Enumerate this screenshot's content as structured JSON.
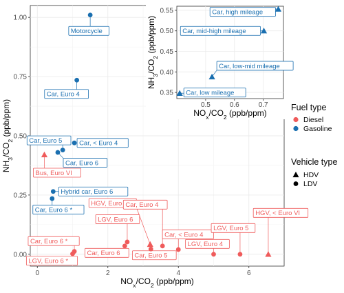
{
  "chart_data": {
    "type": "scatter",
    "x_label": "NOx/CO2 (ppb/ppm)",
    "y_label": "NH3/CO2 (ppb/ppm)",
    "xlim": [
      -0.2,
      7.0
    ],
    "ylim": [
      -0.05,
      1.05
    ],
    "x_ticks": [
      0,
      2,
      4,
      6
    ],
    "y_ticks": [
      0.0,
      0.25,
      0.5,
      0.75,
      1.0
    ],
    "x_tick_labels": [
      "0",
      "2",
      "4",
      "6"
    ],
    "y_tick_labels": [
      "0.00",
      "0.25",
      "0.50",
      "0.75",
      "1.00"
    ],
    "grid": true,
    "colors": {
      "Diesel": "#ef5b5b",
      "Gasoline": "#1a6fb0"
    },
    "legend": {
      "fuel_title": "Fuel type",
      "fuel_items": [
        "Diesel",
        "Gasoline"
      ],
      "vehicle_title": "Vehicle type",
      "vehicle_items": [
        "HDV",
        "LDV"
      ],
      "placement": "right"
    },
    "points": [
      {
        "label": "Motorcycle",
        "x": 1.5,
        "y": 1.01,
        "fuel": "Gasoline",
        "type": "LDV"
      },
      {
        "label": "Car, Euro 4",
        "x": 1.12,
        "y": 0.735,
        "fuel": "Gasoline",
        "type": "LDV"
      },
      {
        "label": "Car, Euro 5",
        "x": 0.72,
        "y": 0.44,
        "fuel": "Gasoline",
        "type": "LDV"
      },
      {
        "label": "Car, < Euro 4",
        "x": 1.05,
        "y": 0.47,
        "fuel": "Gasoline",
        "type": "LDV"
      },
      {
        "label": "Car, Euro 6",
        "x": 0.58,
        "y": 0.43,
        "fuel": "Gasoline",
        "type": "LDV"
      },
      {
        "label": "Hybrid car, Euro 6",
        "x": 0.45,
        "y": 0.265,
        "fuel": "Gasoline",
        "type": "LDV"
      },
      {
        "label": "Car, Euro 6 *",
        "x": 0.42,
        "y": 0.235,
        "fuel": "Gasoline",
        "type": "LDV"
      },
      {
        "label": "Bus, Euro VI",
        "x": 0.2,
        "y": 0.42,
        "fuel": "Diesel",
        "type": "HDV"
      },
      {
        "label": "HGV, Euro VI",
        "x": 3.2,
        "y": 0.042,
        "fuel": "Diesel",
        "type": "HDV"
      },
      {
        "label": "HGV, < Euro VI",
        "x": 6.55,
        "y": 0.0,
        "fuel": "Diesel",
        "type": "HDV"
      },
      {
        "label": "LGV, Euro 6",
        "x": 2.55,
        "y": 0.052,
        "fuel": "Diesel",
        "type": "LDV"
      },
      {
        "label": "Car, Euro 6",
        "x": 2.48,
        "y": 0.035,
        "fuel": "Diesel",
        "type": "LDV"
      },
      {
        "label": "Car, Euro 4",
        "x": 3.55,
        "y": 0.035,
        "fuel": "Diesel",
        "type": "LDV"
      },
      {
        "label": "Car, Euro 5",
        "x": 3.22,
        "y": 0.022,
        "fuel": "Diesel",
        "type": "LDV"
      },
      {
        "label": "Car, < Euro 4",
        "x": 4.0,
        "y": 0.02,
        "fuel": "Diesel",
        "type": "LDV"
      },
      {
        "label": "LGV, Euro 4",
        "x": 5.0,
        "y": 0.0,
        "fuel": "Diesel",
        "type": "LDV"
      },
      {
        "label": "LGV, Euro 5",
        "x": 5.75,
        "y": 0.0,
        "fuel": "Diesel",
        "type": "LDV"
      },
      {
        "label": "Car, Euro 6 *",
        "x": 1.05,
        "y": 0.012,
        "fuel": "Diesel",
        "type": "LDV"
      },
      {
        "label": "LGV, Euro 6 *",
        "x": 1.0,
        "y": 0.002,
        "fuel": "Diesel",
        "type": "LDV"
      }
    ],
    "inset": {
      "x_label": "NOx/CO2 (ppb/ppm)",
      "y_label": "NH3/CO2 (ppb/ppm)",
      "xlim": [
        0.4,
        0.77
      ],
      "ylim": [
        0.335,
        0.56
      ],
      "x_ticks": [
        0.5,
        0.6,
        0.7
      ],
      "y_ticks": [
        0.35,
        0.4,
        0.45,
        0.5,
        0.55
      ],
      "x_tick_labels": [
        "0.5",
        "0.6",
        "0.7"
      ],
      "y_tick_labels": [
        "0.35",
        "0.40",
        "0.45",
        "0.50",
        "0.55"
      ],
      "points": [
        {
          "label": "Car, high mileage",
          "x": 0.752,
          "y": 0.553,
          "fuel": "Gasoline",
          "type": "HDV"
        },
        {
          "label": "Car, mid-high mileage",
          "x": 0.702,
          "y": 0.5,
          "fuel": "Gasoline",
          "type": "HDV"
        },
        {
          "label": "Car, low-mid mileage",
          "x": 0.522,
          "y": 0.388,
          "fuel": "Gasoline",
          "type": "HDV"
        },
        {
          "label": "Car, low mileage",
          "x": 0.41,
          "y": 0.348,
          "fuel": "Gasoline",
          "type": "HDV"
        }
      ]
    }
  }
}
